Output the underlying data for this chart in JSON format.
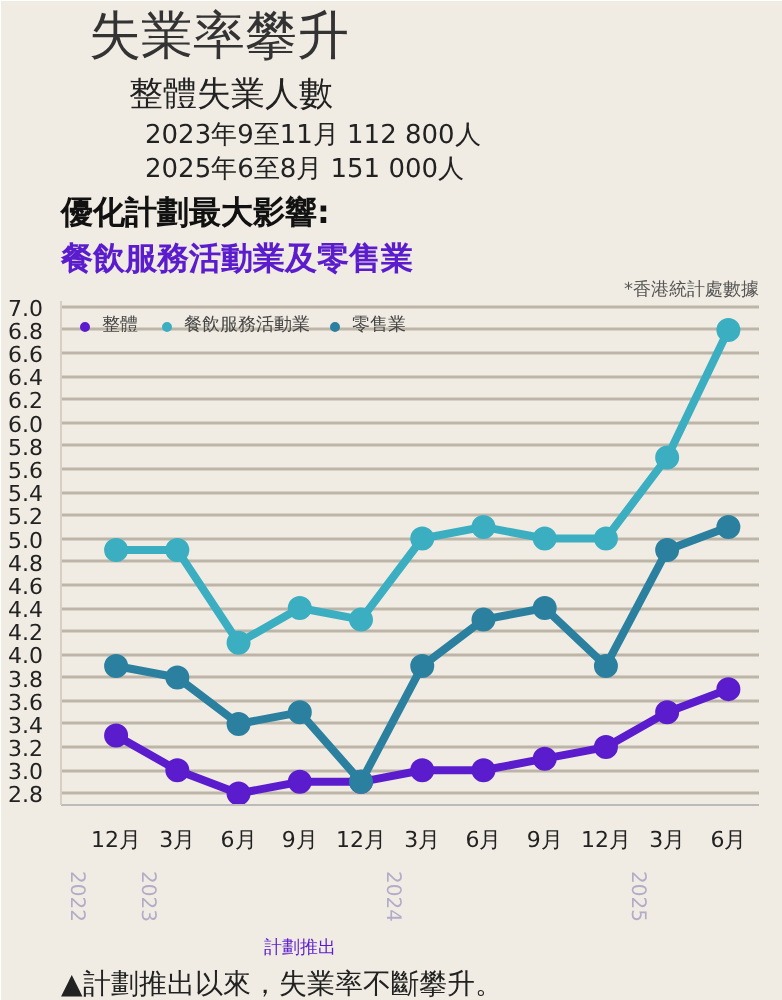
{
  "chart_data": {
    "type": "line",
    "title": "失業率攀升",
    "subtitle": "整體失業人數",
    "annotations": [
      "2023年9至11月 112 800人",
      "2025年6至8月 151 000人",
      "優化計劃最大影響:",
      "餐飲服務活動業及零售業",
      "*香港統計處數據",
      "2022",
      "2023",
      "2024",
      "2025",
      "計劃推出",
      "▲計劃推出以來，失業率不斷攀升。"
    ],
    "categories": [
      "12月",
      "3月",
      "6月",
      "9月",
      "12月",
      "3月",
      "6月",
      "9月",
      "12月",
      "3月",
      "6月"
    ],
    "series": [
      {
        "name": "整體",
        "color": "#5a1ccc",
        "values": [
          3.3,
          3.0,
          2.8,
          2.9,
          2.9,
          3.0,
          3.0,
          3.1,
          3.2,
          3.5,
          3.7
        ]
      },
      {
        "name": "餐飲服務活動業",
        "color": "#3bafc1",
        "values": [
          4.9,
          4.9,
          4.1,
          4.4,
          4.3,
          5.0,
          5.1,
          5.0,
          5.0,
          5.7,
          6.8
        ]
      },
      {
        "name": "零售業",
        "color": "#2b80a0",
        "values": [
          3.9,
          3.8,
          3.4,
          3.5,
          2.9,
          3.9,
          4.3,
          4.4,
          3.9,
          4.9,
          5.1
        ]
      }
    ],
    "ylim": [
      2.7,
      7.05
    ],
    "yticks": [
      {
        "value": 2.8,
        "label": "2.8"
      },
      {
        "value": 3.0,
        "label": "3.0"
      },
      {
        "value": 3.2,
        "label": "3.2"
      },
      {
        "value": 3.4,
        "label": "3.4"
      },
      {
        "value": 3.6,
        "label": "3.6"
      },
      {
        "value": 3.8,
        "label": "3.8"
      },
      {
        "value": 4.0,
        "label": "4.0"
      },
      {
        "value": 4.2,
        "label": "4.2"
      },
      {
        "value": 4.4,
        "label": "4.4"
      },
      {
        "value": 4.6,
        "label": "4.6"
      },
      {
        "value": 4.8,
        "label": "4.8"
      },
      {
        "value": 5.0,
        "label": "5.0"
      },
      {
        "value": 5.2,
        "label": "5.2"
      },
      {
        "value": 5.4,
        "label": "5.4"
      },
      {
        "value": 5.6,
        "label": "5.6"
      },
      {
        "value": 5.8,
        "label": "5.8"
      },
      {
        "value": 6.0,
        "label": "6.0"
      },
      {
        "value": 6.2,
        "label": "6.2"
      },
      {
        "value": 6.4,
        "label": "6.4"
      },
      {
        "value": 6.6,
        "label": "6.6"
      },
      {
        "value": 6.8,
        "label": "6.8"
      },
      {
        "value": 7.0,
        "label": "7.0"
      }
    ],
    "grid": "y",
    "legend": "top left",
    "marker": "circle",
    "line_style": "solid"
  }
}
